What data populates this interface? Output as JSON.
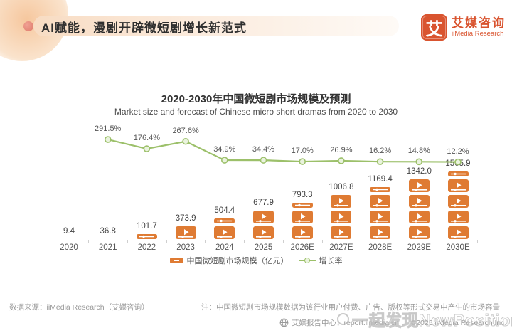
{
  "header": {
    "title": "AI赋能，漫剧开辟微短剧增长新范式",
    "logo": {
      "glyph": "艾",
      "brand_cn": "艾媒咨询",
      "brand_en": "iiMedia Research"
    }
  },
  "chart_data": {
    "type": "bar",
    "title": "2020-2030年中国微短剧市场规模及预测",
    "subtitle": "Market size and forecast of Chinese micro short dramas from 2020 to 2030",
    "categories": [
      "2020",
      "2021",
      "2022",
      "2023",
      "2024",
      "2025",
      "2026E",
      "2027E",
      "2028E",
      "2029E",
      "2030E"
    ],
    "series": [
      {
        "name": "中国微短剧市场规模（亿元）",
        "type": "bar",
        "unit": "亿元",
        "values": [
          9.4,
          36.8,
          101.7,
          373.9,
          504.4,
          677.9,
          793.3,
          1006.8,
          1169.4,
          1342.0,
          1505.9
        ]
      },
      {
        "name": "增长率",
        "type": "line",
        "unit": "%",
        "values": [
          null,
          291.5,
          176.4,
          267.6,
          34.9,
          34.4,
          17.0,
          26.9,
          16.2,
          14.8,
          12.2
        ]
      }
    ],
    "legend_position": "bottom",
    "grid": false
  },
  "legend": {
    "bar_label": "中国微短剧市场规模（亿元）",
    "line_label": "增长率"
  },
  "footer": {
    "source": "数据来源：iiMedia Research（艾媒咨询）",
    "note": "注：中国微短剧市场规模数据为该行业用户付费、广告、版权等形式交易中产生的市场容量",
    "report_center": "艾媒报告中心：report.iimedia.cn ｜ ©2025  iiMedia Research Inc."
  },
  "watermark": "一起发现NewPosition",
  "colors": {
    "accent_orange": "#df7b33",
    "logo_orange": "#d9542f",
    "line_green": "#9cc06a",
    "marker_fill": "#eaf3de",
    "axis_gray": "#d9d9d9",
    "text_gray": "#999999"
  }
}
